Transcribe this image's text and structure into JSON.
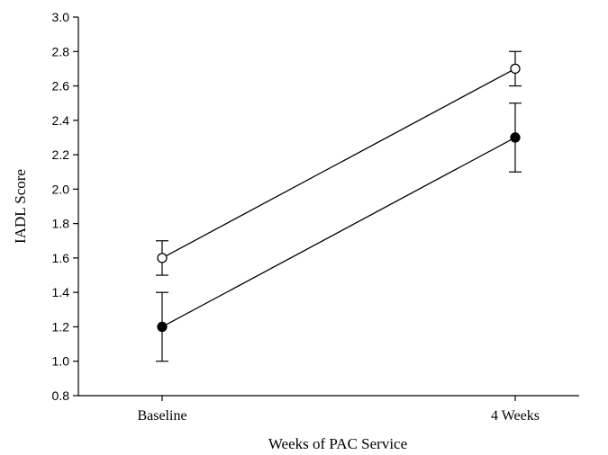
{
  "chart_data": {
    "type": "line",
    "categories": [
      "Baseline",
      "4 Weeks"
    ],
    "xlabel": "Weeks of PAC Service",
    "ylabel": "IADL Score",
    "ylim": [
      0.8,
      3.0
    ],
    "yticks": [
      "0.8",
      "1.0",
      "1.2",
      "1.4",
      "1.6",
      "1.8",
      "2.0",
      "2.2",
      "2.4",
      "2.6",
      "2.8",
      "3.0"
    ],
    "grid": false,
    "legend": "none",
    "series": [
      {
        "marker": "open-circle",
        "color": "#000000",
        "values": [
          1.6,
          2.7
        ],
        "error_low": [
          1.5,
          2.6
        ],
        "error_high": [
          1.7,
          2.8
        ]
      },
      {
        "marker": "filled-circle",
        "color": "#000000",
        "values": [
          1.2,
          2.3
        ],
        "error_low": [
          1.0,
          2.1
        ],
        "error_high": [
          1.4,
          2.5
        ]
      }
    ]
  }
}
